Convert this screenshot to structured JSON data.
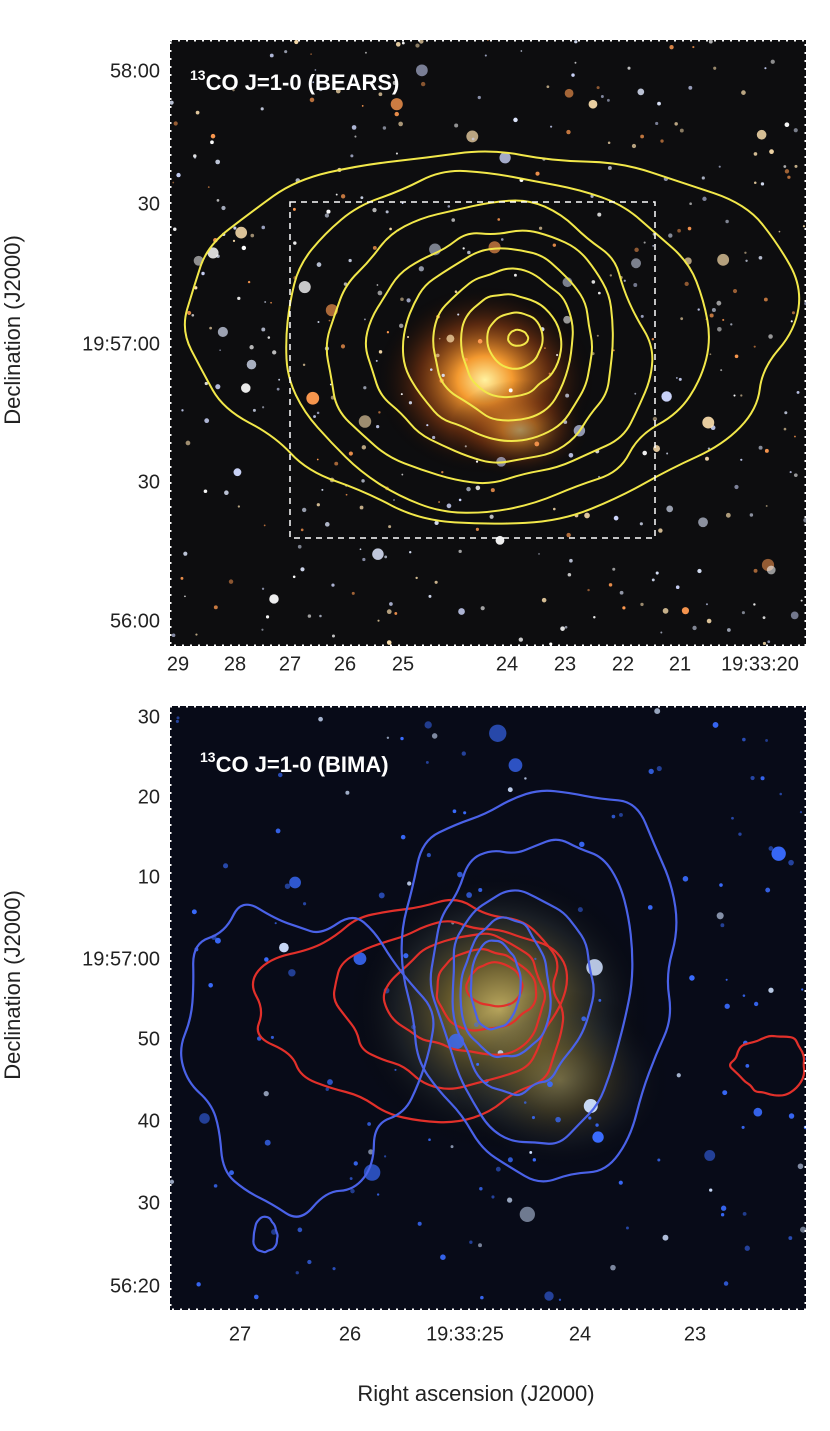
{
  "panels": [
    {
      "label": {
        "sup": "13",
        "text": "CO J=1-0 (BEARS)"
      },
      "y_axis_title": "Declination (J2000)",
      "y_tick_labels": [
        "58:00",
        "30",
        "19:57:00",
        "30",
        "56:00"
      ],
      "x_tick_labels": [
        "29",
        "28",
        "27",
        "26",
        "25",
        "24",
        "23",
        "22",
        "21",
        "19:33:20"
      ]
    },
    {
      "label": {
        "sup": "13",
        "text": "CO J=1-0 (BIMA)"
      },
      "y_axis_title": "Declination (J2000)",
      "y_tick_labels": [
        "30",
        "20",
        "10",
        "19:57:00",
        "50",
        "40",
        "30",
        "56:20"
      ],
      "x_tick_labels": [
        "27",
        "26",
        "19:33:25",
        "24",
        "23"
      ]
    }
  ],
  "x_axis_title": "Right ascension (J2000)"
}
